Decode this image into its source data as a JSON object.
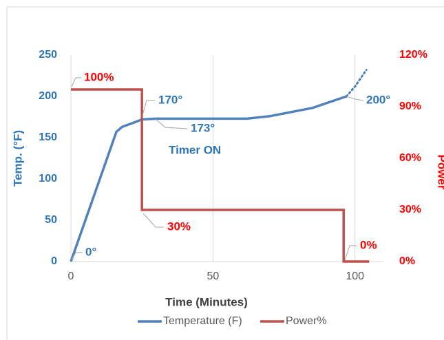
{
  "chart_data": {
    "type": "line",
    "xlabel": "Time (Minutes)",
    "ylabel": "Temp. (°F)",
    "y2label": "Power",
    "xlim": [
      0,
      110
    ],
    "xticks": [
      0,
      50,
      100
    ],
    "ylim": [
      0,
      250
    ],
    "yticks": [
      0,
      50,
      100,
      150,
      200,
      250
    ],
    "y2lim": [
      0,
      120
    ],
    "y2ticks": [
      {
        "value": 0,
        "label": "0%"
      },
      {
        "value": 30,
        "label": "30%"
      },
      {
        "value": 60,
        "label": "60%"
      },
      {
        "value": 90,
        "label": "90%"
      },
      {
        "value": 120,
        "label": "120%"
      }
    ],
    "grid": "x",
    "legend": "bottom",
    "series": [
      {
        "name": "Temperature (F)",
        "color": "#4f81bd",
        "x": [
          0,
          16,
          18,
          22,
          25,
          30,
          62,
          70,
          85,
          97
        ],
        "values": [
          0,
          157,
          163,
          168,
          172,
          173,
          173,
          176,
          186,
          200
        ]
      },
      {
        "color": "#4f81bd",
        "style": "dotted",
        "x": [
          97,
          100,
          104
        ],
        "values": [
          200,
          212,
          232
        ]
      },
      {
        "name": "Power%",
        "color": "#c0504d",
        "axis": "y2",
        "x": [
          0,
          25,
          25,
          96,
          96,
          105
        ],
        "values": [
          100,
          100,
          30,
          30,
          0,
          0
        ]
      }
    ],
    "annotations": [
      {
        "text": "100%",
        "color": "#ff0000"
      },
      {
        "text": "170°",
        "color": "#2e75b6"
      },
      {
        "text": "173°",
        "color": "#2e75b6"
      },
      {
        "text": "Timer ON",
        "color": "#2e75b6"
      },
      {
        "text": "200°",
        "color": "#2e75b6"
      },
      {
        "text": "0°",
        "color": "#2e75b6"
      },
      {
        "text": "30%",
        "color": "#ff0000"
      },
      {
        "text": "0%",
        "color": "#ff0000"
      }
    ]
  }
}
